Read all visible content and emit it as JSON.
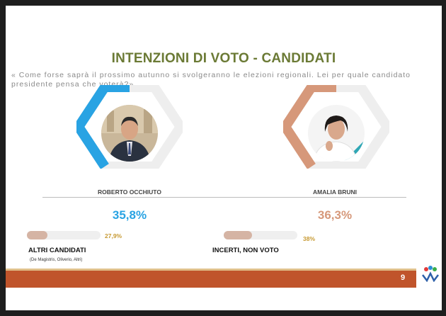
{
  "slide": {
    "title": "INTENZIONI DI VOTO - CANDIDATI",
    "question": "« Come forse saprà il prossimo autunno si svolgeranno le elezioni regionali. Lei per quale candidato presidente pensa che voterà?»",
    "page_number": "9"
  },
  "candidates": [
    {
      "name": "ROBERTO OCCHIUTO",
      "percent_label": "35,8%",
      "value": 35.8,
      "color": "#29a3e3"
    },
    {
      "name": "AMALIA BRUNI",
      "percent_label": "36,3%",
      "value": 36.3,
      "color": "#d6987a"
    }
  ],
  "others": [
    {
      "label": "ALTRI CANDIDATI",
      "sublabel": "(De Magistris, Oliverio, Altri)",
      "percent_label": "27,9%",
      "value": 27.9
    },
    {
      "label": "INCERTI, NON VOTO",
      "sublabel": "",
      "percent_label": "38%",
      "value": 38
    }
  ],
  "colors": {
    "title": "#6b7a35",
    "footer": "#c0542b",
    "bar_fill": "#d5b4a4"
  }
}
